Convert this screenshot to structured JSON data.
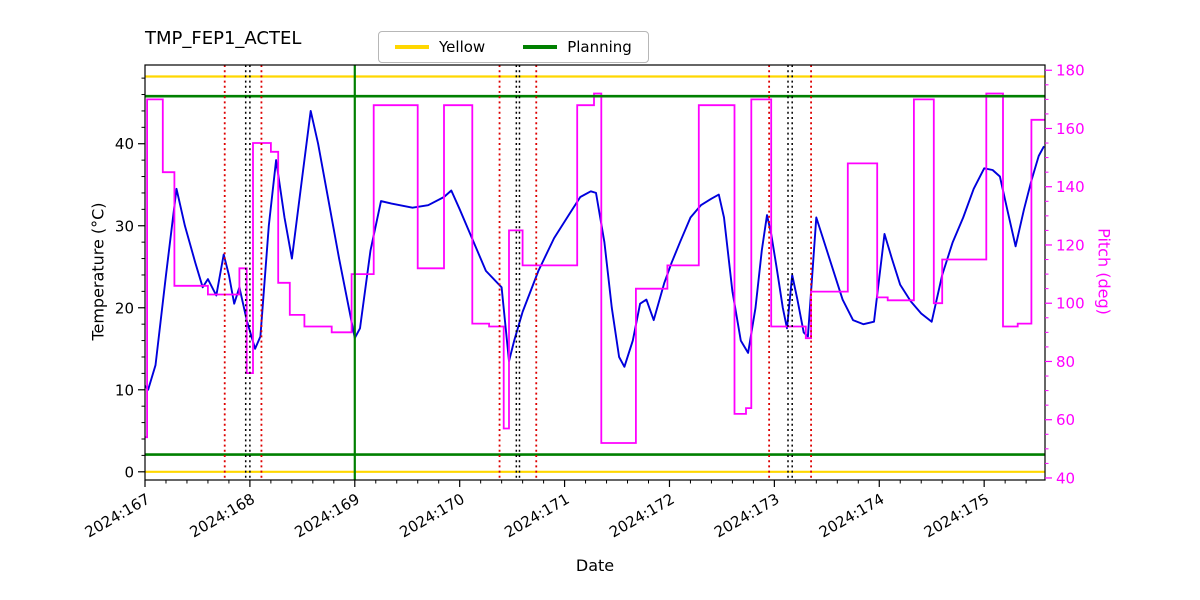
{
  "chart_data": {
    "type": "line",
    "title": "TMP_FEP1_ACTEL",
    "xlabel": "Date",
    "ylabel_left": "Temperature (°C)",
    "ylabel_right": "Pitch (deg)",
    "xlim": [
      167.0,
      175.58
    ],
    "x_tick_values": [
      167,
      168,
      169,
      170,
      171,
      172,
      173,
      174,
      175
    ],
    "x_tick_labels": [
      "2024:167",
      "2024:168",
      "2024:169",
      "2024:170",
      "2024:171",
      "2024:172",
      "2024:173",
      "2024:174",
      "2024:175"
    ],
    "temp_ylim": [
      -1.0,
      49.6
    ],
    "temp_ticks": [
      0,
      10,
      20,
      30,
      40
    ],
    "pitch_ylim": [
      39.3,
      181.8
    ],
    "pitch_ticks": [
      40,
      60,
      80,
      100,
      120,
      140,
      160,
      180
    ],
    "legend": [
      {
        "label": "Yellow",
        "color": "#ffd700"
      },
      {
        "label": "Planning",
        "color": "#008000"
      }
    ],
    "colors": {
      "temperature": "#0000dd",
      "pitch": "#ff00ff",
      "yellow_limit": "#ffd700",
      "planning_limit": "#008000",
      "red_marker": "#dd0000",
      "black_marker": "#000000"
    },
    "hlines": [
      {
        "y": 0.0,
        "axis": "left",
        "color": "#ffd700",
        "width": 2.2,
        "style": "solid"
      },
      {
        "y": 48.2,
        "axis": "left",
        "color": "#ffd700",
        "width": 2.2,
        "style": "solid"
      },
      {
        "y": 2.1,
        "axis": "left",
        "color": "#008000",
        "width": 2.6,
        "style": "solid"
      },
      {
        "y": 45.8,
        "axis": "left",
        "color": "#008000",
        "width": 2.6,
        "style": "solid"
      }
    ],
    "vlines": [
      {
        "x": 169.0,
        "color": "#008000",
        "width": 2.2,
        "style": "solid"
      },
      {
        "x": 167.76,
        "color": "#dd0000",
        "width": 1.8,
        "style": "dotted"
      },
      {
        "x": 168.11,
        "color": "#dd0000",
        "width": 1.8,
        "style": "dotted"
      },
      {
        "x": 170.38,
        "color": "#dd0000",
        "width": 1.8,
        "style": "dotted"
      },
      {
        "x": 170.73,
        "color": "#dd0000",
        "width": 1.8,
        "style": "dotted"
      },
      {
        "x": 172.95,
        "color": "#dd0000",
        "width": 1.8,
        "style": "dotted"
      },
      {
        "x": 173.35,
        "color": "#dd0000",
        "width": 1.8,
        "style": "dotted"
      },
      {
        "x": 167.96,
        "color": "#000000",
        "width": 1.5,
        "style": "dotted"
      },
      {
        "x": 168.0,
        "color": "#000000",
        "width": 1.5,
        "style": "dotted"
      },
      {
        "x": 170.54,
        "color": "#000000",
        "width": 1.5,
        "style": "dotted"
      },
      {
        "x": 170.57,
        "color": "#000000",
        "width": 1.5,
        "style": "dotted"
      },
      {
        "x": 173.13,
        "color": "#000000",
        "width": 1.5,
        "style": "dotted"
      },
      {
        "x": 173.17,
        "color": "#000000",
        "width": 1.5,
        "style": "dotted"
      }
    ],
    "series": {
      "temperature": {
        "axis": "left",
        "points": [
          [
            167.0,
            10.5
          ],
          [
            167.03,
            10.0
          ],
          [
            167.1,
            13.0
          ],
          [
            167.2,
            24.0
          ],
          [
            167.3,
            34.5
          ],
          [
            167.38,
            30.0
          ],
          [
            167.48,
            25.5
          ],
          [
            167.55,
            22.5
          ],
          [
            167.6,
            23.5
          ],
          [
            167.68,
            21.5
          ],
          [
            167.75,
            26.5
          ],
          [
            167.8,
            24.0
          ],
          [
            167.85,
            20.5
          ],
          [
            167.9,
            22.5
          ],
          [
            167.97,
            18.5
          ],
          [
            168.05,
            15.0
          ],
          [
            168.1,
            16.5
          ],
          [
            168.18,
            30.0
          ],
          [
            168.25,
            38.0
          ],
          [
            168.33,
            31.0
          ],
          [
            168.4,
            26.0
          ],
          [
            168.5,
            36.0
          ],
          [
            168.58,
            44.0
          ],
          [
            168.65,
            40.0
          ],
          [
            168.75,
            33.0
          ],
          [
            168.85,
            26.0
          ],
          [
            169.0,
            16.3
          ],
          [
            169.05,
            17.5
          ],
          [
            169.15,
            27.0
          ],
          [
            169.25,
            33.0
          ],
          [
            169.35,
            32.7
          ],
          [
            169.55,
            32.2
          ],
          [
            169.7,
            32.5
          ],
          [
            169.85,
            33.5
          ],
          [
            169.92,
            34.3
          ],
          [
            170.0,
            32.0
          ],
          [
            170.1,
            29.0
          ],
          [
            170.25,
            24.5
          ],
          [
            170.4,
            22.5
          ],
          [
            170.47,
            13.5
          ],
          [
            170.52,
            16.0
          ],
          [
            170.6,
            19.5
          ],
          [
            170.75,
            24.5
          ],
          [
            170.9,
            28.5
          ],
          [
            171.05,
            31.5
          ],
          [
            171.15,
            33.5
          ],
          [
            171.25,
            34.2
          ],
          [
            171.3,
            34.0
          ],
          [
            171.38,
            28.0
          ],
          [
            171.45,
            20.0
          ],
          [
            171.52,
            14.0
          ],
          [
            171.57,
            12.8
          ],
          [
            171.65,
            16.0
          ],
          [
            171.72,
            20.5
          ],
          [
            171.78,
            21.0
          ],
          [
            171.85,
            18.5
          ],
          [
            171.95,
            23.0
          ],
          [
            172.02,
            25.5
          ],
          [
            172.1,
            28.0
          ],
          [
            172.2,
            31.0
          ],
          [
            172.3,
            32.5
          ],
          [
            172.4,
            33.3
          ],
          [
            172.47,
            33.8
          ],
          [
            172.52,
            31.0
          ],
          [
            172.6,
            22.0
          ],
          [
            172.68,
            16.0
          ],
          [
            172.75,
            14.5
          ],
          [
            172.82,
            20.0
          ],
          [
            172.88,
            27.0
          ],
          [
            172.93,
            31.3
          ],
          [
            172.97,
            29.0
          ],
          [
            173.02,
            25.0
          ],
          [
            173.08,
            20.0
          ],
          [
            173.12,
            17.5
          ],
          [
            173.17,
            24.0
          ],
          [
            173.22,
            21.0
          ],
          [
            173.28,
            17.0
          ],
          [
            173.32,
            16.5
          ],
          [
            173.4,
            31.0
          ],
          [
            173.45,
            29.0
          ],
          [
            173.55,
            25.0
          ],
          [
            173.65,
            21.0
          ],
          [
            173.75,
            18.5
          ],
          [
            173.85,
            18.0
          ],
          [
            173.95,
            18.3
          ],
          [
            174.05,
            29.0
          ],
          [
            174.12,
            26.0
          ],
          [
            174.2,
            22.8
          ],
          [
            174.3,
            20.8
          ],
          [
            174.4,
            19.3
          ],
          [
            174.5,
            18.3
          ],
          [
            174.6,
            24.0
          ],
          [
            174.7,
            28.0
          ],
          [
            174.8,
            31.0
          ],
          [
            174.9,
            34.5
          ],
          [
            175.0,
            37.0
          ],
          [
            175.08,
            36.8
          ],
          [
            175.15,
            36.0
          ],
          [
            175.22,
            32.0
          ],
          [
            175.3,
            27.5
          ],
          [
            175.38,
            32.0
          ],
          [
            175.45,
            35.5
          ],
          [
            175.52,
            38.5
          ],
          [
            175.57,
            39.7
          ]
        ]
      },
      "pitch": {
        "axis": "right",
        "steps": [
          [
            167.0,
            167.02,
            54
          ],
          [
            167.02,
            167.17,
            170
          ],
          [
            167.17,
            167.28,
            145
          ],
          [
            167.28,
            167.6,
            106
          ],
          [
            167.6,
            167.9,
            103
          ],
          [
            167.9,
            167.97,
            112
          ],
          [
            167.97,
            168.03,
            76
          ],
          [
            168.03,
            168.2,
            155
          ],
          [
            168.2,
            168.27,
            152
          ],
          [
            168.27,
            168.38,
            107
          ],
          [
            168.38,
            168.52,
            96
          ],
          [
            168.52,
            168.78,
            92
          ],
          [
            168.78,
            168.97,
            90
          ],
          [
            168.97,
            169.18,
            110
          ],
          [
            169.18,
            169.6,
            168
          ],
          [
            169.6,
            169.85,
            112
          ],
          [
            169.85,
            170.12,
            168
          ],
          [
            170.12,
            170.28,
            93
          ],
          [
            170.28,
            170.42,
            92
          ],
          [
            170.42,
            170.47,
            57
          ],
          [
            170.47,
            170.6,
            125
          ],
          [
            170.6,
            171.12,
            113
          ],
          [
            171.12,
            171.28,
            168
          ],
          [
            171.28,
            171.35,
            172
          ],
          [
            171.35,
            171.68,
            52
          ],
          [
            171.68,
            171.98,
            105
          ],
          [
            171.98,
            172.28,
            113
          ],
          [
            172.28,
            172.62,
            168
          ],
          [
            172.62,
            172.73,
            62
          ],
          [
            172.73,
            172.78,
            64
          ],
          [
            172.78,
            172.97,
            170
          ],
          [
            172.97,
            173.3,
            92
          ],
          [
            173.3,
            173.35,
            88
          ],
          [
            173.35,
            173.7,
            104
          ],
          [
            173.7,
            173.98,
            148
          ],
          [
            173.98,
            174.08,
            102
          ],
          [
            174.08,
            174.33,
            101
          ],
          [
            174.33,
            174.52,
            170
          ],
          [
            174.52,
            174.6,
            100
          ],
          [
            174.6,
            175.02,
            115
          ],
          [
            175.02,
            175.18,
            172
          ],
          [
            175.18,
            175.32,
            92
          ],
          [
            175.32,
            175.45,
            93
          ],
          [
            175.45,
            175.58,
            163
          ]
        ]
      }
    }
  }
}
